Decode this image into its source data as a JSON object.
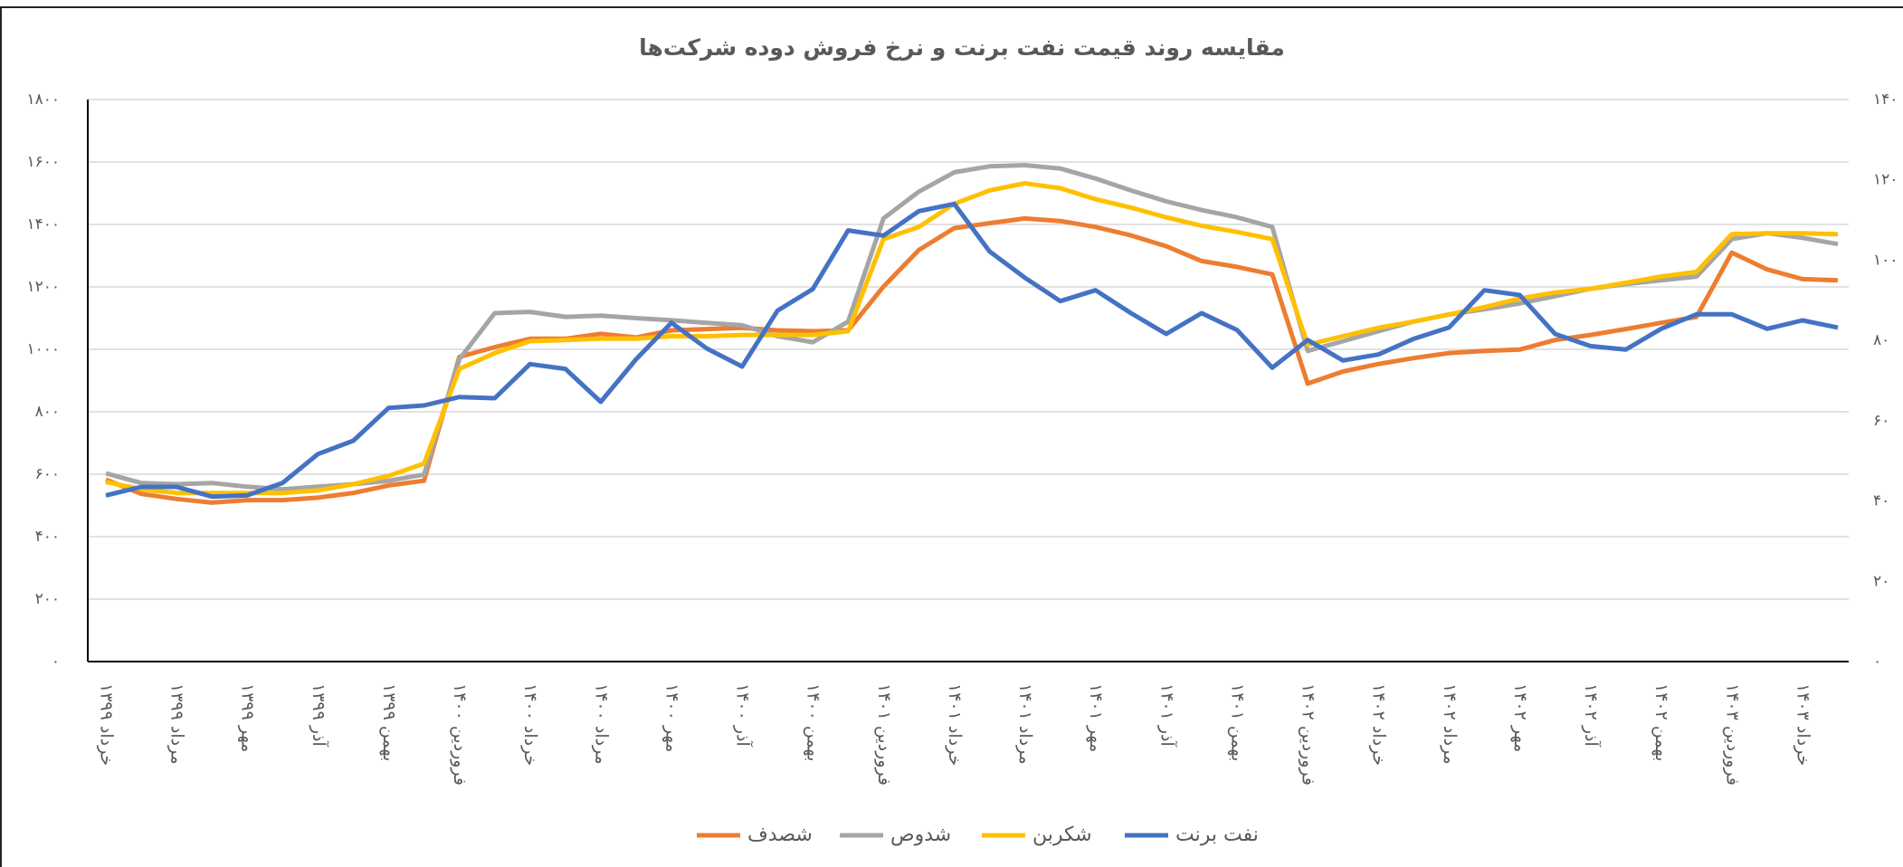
{
  "chart_data": {
    "type": "line",
    "title": "مقایسه روند قیمت نفت برنت و نرخ فروش دوده شرکت‌ها",
    "categories": [
      "خرداد ۱۳۹۹",
      null,
      "مرداد ۱۳۹۹",
      null,
      "مهر ۱۳۹۹",
      null,
      "آذر ۱۳۹۹",
      null,
      "بهمن ۱۳۹۹",
      null,
      "فروردین ۱۴۰۰",
      null,
      "خرداد ۱۴۰۰",
      null,
      "مرداد ۱۴۰۰",
      null,
      "مهر ۱۴۰۰",
      null,
      "آذر ۱۴۰۰",
      null,
      "بهمن ۱۴۰۰",
      null,
      "فروردین ۱۴۰۱",
      null,
      "خرداد ۱۴۰۱",
      null,
      "مرداد ۱۴۰۱",
      null,
      "مهر ۱۴۰۱",
      null,
      "آذر ۱۴۰۱",
      null,
      "بهمن ۱۴۰۱",
      null,
      "فروردین ۱۴۰۲",
      null,
      "خرداد ۱۴۰۲",
      null,
      "مرداد ۱۴۰۲",
      null,
      "مهر ۱۴۰۲",
      null,
      "آذر ۱۴۰۲",
      null,
      "بهمن ۱۴۰۲",
      null,
      "فروردین ۱۴۰۳",
      null,
      "خرداد ۱۴۰۳",
      null
    ],
    "series": [
      {
        "name": "شصدف",
        "color": "#ED7D31",
        "values": [
          583,
          537,
          521,
          509,
          517,
          517,
          525,
          540,
          564,
          579,
          976,
          1007,
          1034,
          1034,
          1050,
          1038,
          1061,
          1065,
          1069,
          1061,
          1058,
          1061,
          1201,
          1318,
          1388,
          1404,
          1419,
          1411,
          1392,
          1365,
          1330,
          1283,
          1264,
          1240,
          890,
          929,
          953,
          972,
          988,
          995,
          999,
          1030,
          1046,
          1065,
          1085,
          1104,
          1310,
          1256,
          1225,
          1221
        ]
      },
      {
        "name": "شدوص",
        "color": "#A5A5A5",
        "values": [
          603,
          572,
          568,
          572,
          560,
          552,
          560,
          568,
          579,
          599,
          968,
          1116,
          1120,
          1104,
          1108,
          1100,
          1093,
          1085,
          1077,
          1042,
          1023,
          1089,
          1419,
          1505,
          1567,
          1586,
          1590,
          1579,
          1547,
          1509,
          1474,
          1446,
          1423,
          1392,
          995,
          1026,
          1058,
          1089,
          1112,
          1128,
          1147,
          1170,
          1194,
          1209,
          1221,
          1233,
          1353,
          1372,
          1357,
          1337
        ]
      },
      {
        "name": "شکربن",
        "color": "#FFC000",
        "values": [
          575,
          552,
          540,
          540,
          540,
          540,
          548,
          568,
          595,
          634,
          937,
          988,
          1026,
          1030,
          1034,
          1034,
          1042,
          1042,
          1046,
          1046,
          1046,
          1058,
          1353,
          1392,
          1466,
          1509,
          1532,
          1516,
          1481,
          1454,
          1423,
          1396,
          1376,
          1353,
          1015,
          1042,
          1069,
          1089,
          1112,
          1135,
          1163,
          1182,
          1194,
          1213,
          1233,
          1248,
          1369,
          1372,
          1372,
          1369
        ]
      },
      {
        "name": "نفت برنت",
        "color": "#4472C4",
        "axis": "y2",
        "values": [
          41.4,
          43.5,
          43.5,
          41.1,
          41.4,
          44.5,
          51.7,
          55.0,
          63.2,
          63.8,
          65.9,
          65.6,
          74.1,
          72.9,
          64.7,
          75.3,
          84.4,
          78.0,
          73.5,
          87.4,
          92.8,
          107.4,
          106.1,
          112.2,
          114.0,
          102.2,
          95.6,
          89.8,
          92.5,
          86.8,
          81.6,
          86.8,
          82.6,
          73.2,
          80.1,
          75.0,
          76.5,
          80.4,
          83.2,
          92.5,
          91.3,
          81.6,
          78.6,
          77.7,
          82.9,
          86.5,
          86.5,
          82.9,
          85.0,
          83.2
        ]
      }
    ],
    "ylim": [
      0,
      1800
    ],
    "yticks": [
      {
        "value": 0,
        "label": "۰"
      },
      {
        "value": 200,
        "label": "۲۰۰"
      },
      {
        "value": 400,
        "label": "۴۰۰"
      },
      {
        "value": 600,
        "label": "۶۰۰"
      },
      {
        "value": 800,
        "label": "۸۰۰"
      },
      {
        "value": 1000,
        "label": "۱۰۰۰"
      },
      {
        "value": 1200,
        "label": "۱۲۰۰"
      },
      {
        "value": 1400,
        "label": "۱۴۰۰"
      },
      {
        "value": 1600,
        "label": "۱۶۰۰"
      },
      {
        "value": 1800,
        "label": "۱۸۰۰"
      }
    ],
    "y2lim": [
      0,
      140
    ],
    "y2ticks": [
      {
        "value": 0,
        "label": "۰"
      },
      {
        "value": 20,
        "label": "۲۰"
      },
      {
        "value": 40,
        "label": "۴۰"
      },
      {
        "value": 60,
        "label": "۶۰"
      },
      {
        "value": 80,
        "label": "۸۰"
      },
      {
        "value": 100,
        "label": "۱۰۰"
      },
      {
        "value": 120,
        "label": "۱۲۰"
      },
      {
        "value": 140,
        "label": "۱۴۰"
      }
    ],
    "grid": true,
    "legend": "bottom"
  }
}
